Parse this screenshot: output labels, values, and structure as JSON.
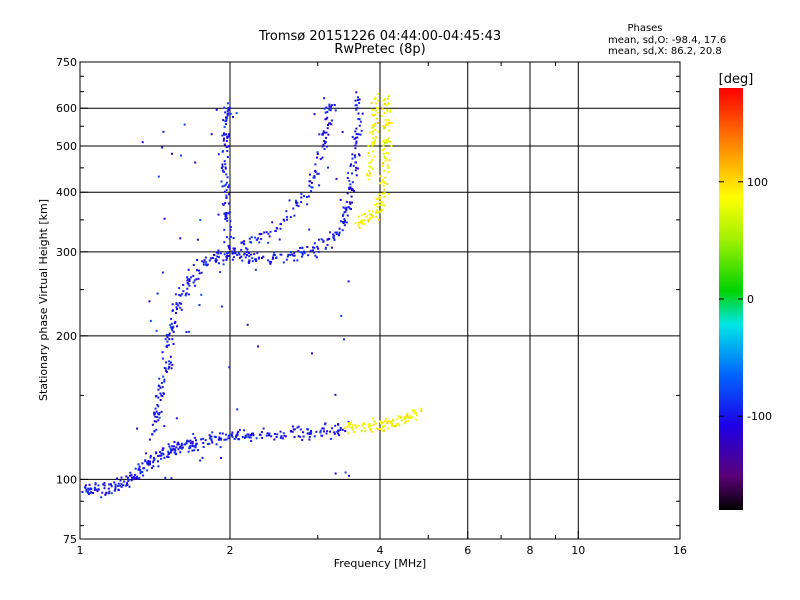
{
  "header": {
    "title_line1": "Tromsø 20151226 04:44:00-04:45:43",
    "title_line2": "RwPretec (8p)"
  },
  "stats": {
    "heading": "Phases",
    "line_o": "mean, sd,O: -98.4, 17.6",
    "line_x": "mean, sd,X:  86.2, 20.8"
  },
  "colors": {
    "background": "#ffffff",
    "grid": "#000000",
    "frame": "#000000"
  },
  "chart_data": {
    "type": "scatter",
    "title": "Tromsø 20151226 04:44:00-04:45:43",
    "subtitle": "RwPretec (8p)",
    "xlabel": "Frequency [MHz]",
    "ylabel": "Stationary phase Virtual Height [km]",
    "x_scale": "log",
    "y_scale": "log",
    "xlim": [
      1,
      16
    ],
    "ylim": [
      75,
      750
    ],
    "x_ticks": [
      1,
      2,
      4,
      6,
      8,
      10,
      16
    ],
    "x_tick_labels": [
      "1",
      "2",
      "4",
      "6",
      "8",
      "10",
      "16"
    ],
    "x_minor_ticks": [
      3,
      5,
      7,
      9
    ],
    "y_ticks": [
      75,
      100,
      200,
      300,
      400,
      500,
      600,
      750
    ],
    "y_tick_labels": [
      "75",
      "100",
      "200",
      "300",
      "400",
      "500",
      "600",
      "750"
    ],
    "grid": true,
    "colorbar": {
      "label": "[deg]",
      "range": [
        -180,
        180
      ],
      "ticks": [
        -100,
        0,
        100
      ],
      "tick_labels": [
        "-100",
        "0",
        "100"
      ],
      "colormap": "rainbow"
    },
    "series": [
      {
        "name": "O",
        "mean_phase": -98.4,
        "sd_phase": 17.6
      },
      {
        "name": "X",
        "mean_phase": 86.2,
        "sd_phase": 20.8
      }
    ],
    "traces": [
      {
        "mode": "O",
        "points": [
          [
            1.02,
            96
          ],
          [
            1.05,
            95
          ],
          [
            1.1,
            95
          ],
          [
            1.15,
            96
          ],
          [
            1.2,
            97
          ],
          [
            1.25,
            99
          ],
          [
            1.3,
            103
          ],
          [
            1.35,
            106
          ],
          [
            1.4,
            109
          ],
          [
            1.45,
            112
          ],
          [
            1.5,
            114
          ],
          [
            1.55,
            116
          ],
          [
            1.6,
            117
          ],
          [
            1.65,
            118
          ],
          [
            1.7,
            119
          ],
          [
            1.8,
            121
          ],
          [
            1.9,
            122
          ],
          [
            2.0,
            123
          ],
          [
            2.1,
            123
          ],
          [
            2.2,
            123
          ],
          [
            2.4,
            124
          ],
          [
            2.6,
            125
          ],
          [
            2.8,
            125
          ],
          [
            3.0,
            126
          ],
          [
            3.2,
            127
          ],
          [
            3.4,
            128
          ]
        ]
      },
      {
        "mode": "O",
        "points": [
          [
            1.4,
            120
          ],
          [
            1.42,
            135
          ],
          [
            1.45,
            150
          ],
          [
            1.48,
            165
          ],
          [
            1.5,
            180
          ],
          [
            1.52,
            200
          ],
          [
            1.55,
            220
          ],
          [
            1.6,
            240
          ],
          [
            1.65,
            255
          ],
          [
            1.7,
            270
          ],
          [
            1.8,
            285
          ],
          [
            1.9,
            293
          ],
          [
            2.0,
            295
          ],
          [
            2.1,
            295
          ],
          [
            2.2,
            294
          ],
          [
            2.4,
            292
          ],
          [
            2.6,
            293
          ],
          [
            2.8,
            297
          ],
          [
            3.0,
            305
          ],
          [
            3.2,
            320
          ],
          [
            3.35,
            340
          ],
          [
            3.45,
            370
          ],
          [
            3.5,
            400
          ],
          [
            3.55,
            450
          ],
          [
            3.6,
            500
          ],
          [
            3.62,
            560
          ],
          [
            3.63,
            630
          ]
        ]
      },
      {
        "mode": "O",
        "points": [
          [
            2.0,
            300
          ],
          [
            1.98,
            340
          ],
          [
            1.96,
            380
          ],
          [
            1.95,
            420
          ],
          [
            1.95,
            470
          ],
          [
            1.96,
            520
          ],
          [
            1.97,
            570
          ],
          [
            1.98,
            610
          ]
        ]
      },
      {
        "mode": "O",
        "points": [
          [
            2.1,
            310
          ],
          [
            2.3,
            320
          ],
          [
            2.5,
            340
          ],
          [
            2.7,
            370
          ],
          [
            2.9,
            410
          ],
          [
            3.0,
            460
          ],
          [
            3.1,
            520
          ],
          [
            3.15,
            580
          ],
          [
            3.2,
            630
          ]
        ]
      },
      {
        "mode": "X",
        "points": [
          [
            3.4,
            128
          ],
          [
            3.6,
            128
          ],
          [
            3.8,
            129
          ],
          [
            4.0,
            130
          ],
          [
            4.2,
            131
          ],
          [
            4.4,
            133
          ],
          [
            4.6,
            136
          ],
          [
            4.8,
            140
          ]
        ]
      },
      {
        "mode": "X",
        "points": [
          [
            3.6,
            345
          ],
          [
            3.75,
            350
          ],
          [
            3.9,
            360
          ],
          [
            4.0,
            375
          ],
          [
            4.05,
            400
          ],
          [
            4.1,
            440
          ],
          [
            4.12,
            490
          ],
          [
            4.13,
            540
          ],
          [
            4.13,
            590
          ],
          [
            4.12,
            640
          ]
        ]
      },
      {
        "mode": "X",
        "points": [
          [
            3.8,
            430
          ],
          [
            3.85,
            480
          ],
          [
            3.9,
            530
          ],
          [
            3.92,
            580
          ],
          [
            3.93,
            630
          ]
        ]
      }
    ]
  }
}
